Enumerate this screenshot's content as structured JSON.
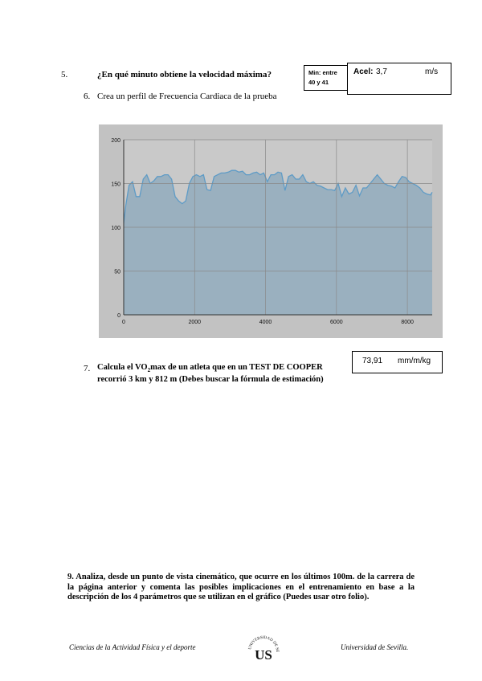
{
  "q5": {
    "number": "5.",
    "text": "¿En qué minuto obtiene la velocidad máxima?",
    "minute_box": {
      "line1": "Min: entre",
      "line2": "40 y 41"
    },
    "accel_box": {
      "label": "Acel:",
      "value": "3,7",
      "unit": "m/s"
    }
  },
  "q6": {
    "number": "6.",
    "text": "Crea un perfil de Frecuencia Cardiaca de la prueba"
  },
  "chart_data": {
    "type": "area",
    "title": "",
    "xlabel": "",
    "ylabel": "",
    "xlim": [
      0,
      8700
    ],
    "ylim": [
      0,
      200
    ],
    "x_ticks": [
      "0",
      "2000",
      "4000",
      "6000",
      "8000"
    ],
    "y_ticks": [
      "0",
      "50",
      "100",
      "150",
      "200"
    ],
    "grid": true,
    "fill_color": "#9ab0bf",
    "line_color": "#5e9bc6",
    "series": [
      {
        "x": [
          0,
          60,
          150,
          250,
          350,
          450,
          550,
          650,
          750,
          850,
          950,
          1050,
          1150,
          1250,
          1350,
          1450,
          1550,
          1650,
          1750,
          1850,
          1950,
          2050,
          2150,
          2250,
          2350,
          2450,
          2550,
          2650,
          2750,
          2850,
          2950,
          3050,
          3150,
          3250,
          3350,
          3450,
          3550,
          3650,
          3750,
          3850,
          3950,
          4050,
          4150,
          4250,
          4350,
          4450,
          4550,
          4650,
          4750,
          4850,
          4950,
          5050,
          5150,
          5250,
          5350,
          5450,
          5550,
          5650,
          5750,
          5850,
          5950,
          6050,
          6150,
          6250,
          6350,
          6450,
          6550,
          6650,
          6750,
          6850,
          6950,
          7050,
          7150,
          7250,
          7350,
          7450,
          7550,
          7650,
          7750,
          7850,
          7950,
          8050,
          8150,
          8250,
          8350,
          8450,
          8550,
          8650,
          8700
        ],
        "y": [
          105,
          125,
          148,
          152,
          135,
          135,
          155,
          160,
          150,
          153,
          158,
          158,
          160,
          160,
          155,
          135,
          130,
          127,
          130,
          150,
          158,
          160,
          158,
          160,
          143,
          142,
          158,
          160,
          162,
          162,
          163,
          165,
          165,
          163,
          164,
          160,
          160,
          162,
          163,
          160,
          162,
          152,
          160,
          160,
          163,
          162,
          142,
          158,
          160,
          155,
          155,
          160,
          152,
          150,
          152,
          148,
          147,
          145,
          143,
          143,
          142,
          150,
          135,
          145,
          138,
          140,
          148,
          136,
          145,
          145,
          150,
          155,
          160,
          155,
          150,
          148,
          147,
          145,
          152,
          158,
          157,
          152,
          150,
          148,
          145,
          140,
          138,
          137,
          140
        ]
      }
    ]
  },
  "q7": {
    "number": "7.",
    "text_prefix": "Calcula el VO",
    "subscript": "2",
    "text_suffix": "max de un atleta que en un TEST DE COOPER recorrió 3 km y 812 m (Debes buscar la fórmula de estimación)",
    "answer_value": "73,91",
    "answer_unit": "mm/m/kg"
  },
  "q9": {
    "text": "9. Analiza, desde un punto de vista cinemático, que ocurre en los últimos 100m. de la carrera de la página anterior y comenta las posibles implicaciones en el entrenamiento en base a la descripción de los 4 parámetros que se utilizan en el gráfico (Puedes usar otro folio)."
  },
  "footer": {
    "left": "Ciencias de la Actividad Física y el deporte",
    "right": "Universidad de Sevilla.",
    "seal_text": "UNIVERSIDAD DE SEVILLA",
    "seal_letters": "US"
  }
}
